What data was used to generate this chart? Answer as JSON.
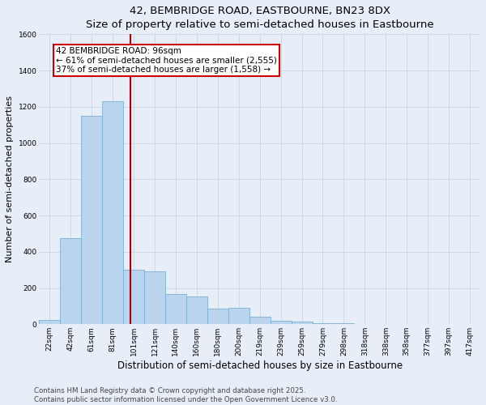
{
  "title": "42, BEMBRIDGE ROAD, EASTBOURNE, BN23 8DX",
  "subtitle": "Size of property relative to semi-detached houses in Eastbourne",
  "xlabel": "Distribution of semi-detached houses by size in Eastbourne",
  "ylabel": "Number of semi-detached properties",
  "categories": [
    "22sqm",
    "42sqm",
    "61sqm",
    "81sqm",
    "101sqm",
    "121sqm",
    "140sqm",
    "160sqm",
    "180sqm",
    "200sqm",
    "219sqm",
    "239sqm",
    "259sqm",
    "279sqm",
    "298sqm",
    "318sqm",
    "338sqm",
    "358sqm",
    "377sqm",
    "397sqm",
    "417sqm"
  ],
  "values": [
    25,
    475,
    1150,
    1230,
    300,
    290,
    165,
    155,
    85,
    90,
    40,
    20,
    15,
    5,
    5,
    3,
    2,
    2,
    1,
    1,
    1
  ],
  "bar_color": "#bad4ed",
  "bar_edge_color": "#7aafd4",
  "property_line_label": "42 BEMBRIDGE ROAD: 96sqm",
  "annotation_smaller": "← 61% of semi-detached houses are smaller (2,555)",
  "annotation_larger": "37% of semi-detached houses are larger (1,558) →",
  "annotation_box_facecolor": "#ffffff",
  "annotation_box_edgecolor": "#cc0000",
  "vline_color": "#aa0000",
  "vline_x": 3.85,
  "ylim": [
    0,
    1600
  ],
  "yticks": [
    0,
    200,
    400,
    600,
    800,
    1000,
    1200,
    1400,
    1600
  ],
  "bg_color": "#e8eef8",
  "plot_bg_color": "#e8eef8",
  "grid_color": "#c8d4e8",
  "footer_line1": "Contains HM Land Registry data © Crown copyright and database right 2025.",
  "footer_line2": "Contains public sector information licensed under the Open Government Licence v3.0.",
  "title_fontsize": 9.5,
  "subtitle_fontsize": 8.5,
  "axis_label_fontsize": 8,
  "tick_fontsize": 6.5,
  "annotation_fontsize": 7.5,
  "footer_fontsize": 6.2
}
